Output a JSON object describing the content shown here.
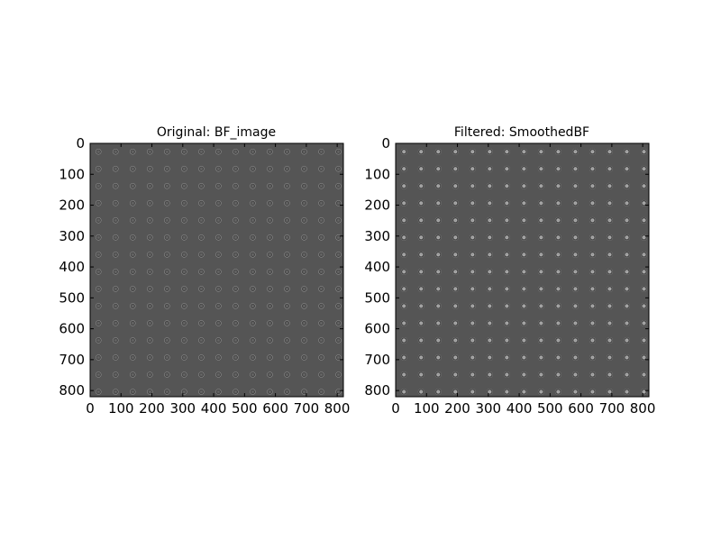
{
  "figure": {
    "panels": [
      {
        "title": "Original: BF_image",
        "xticks": [
          "0",
          "100",
          "200",
          "300",
          "400",
          "500",
          "600",
          "700",
          "800"
        ],
        "yticks": [
          "0",
          "100",
          "200",
          "300",
          "400",
          "500",
          "600",
          "700",
          "800"
        ]
      },
      {
        "title": "Filtered: SmoothedBF",
        "xticks": [
          "0",
          "100",
          "200",
          "300",
          "400",
          "500",
          "600",
          "700",
          "800"
        ],
        "yticks": [
          "0",
          "100",
          "200",
          "300",
          "400",
          "500",
          "600",
          "700",
          "800"
        ]
      }
    ]
  },
  "chart_data": [
    {
      "type": "heatmap",
      "title": "Original: BF_image",
      "xlabel": "",
      "ylabel": "",
      "xlim": [
        0,
        820
      ],
      "ylim": [
        820,
        0
      ],
      "xticks": [
        0,
        100,
        200,
        300,
        400,
        500,
        600,
        700,
        800
      ],
      "yticks": [
        0,
        100,
        200,
        300,
        400,
        500,
        600,
        700,
        800
      ],
      "colormap": "gray",
      "background_color": "#555555",
      "grid": false,
      "spot_grid": {
        "rows": 15,
        "cols": 15,
        "first_x": 27,
        "first_y": 27,
        "spacing_x": 55.5,
        "spacing_y": 55.5,
        "spot_radius": 10
      }
    },
    {
      "type": "heatmap",
      "title": "Filtered: SmoothedBF",
      "xlabel": "",
      "ylabel": "",
      "xlim": [
        0,
        820
      ],
      "ylim": [
        820,
        0
      ],
      "xticks": [
        0,
        100,
        200,
        300,
        400,
        500,
        600,
        700,
        800
      ],
      "yticks": [
        0,
        100,
        200,
        300,
        400,
        500,
        600,
        700,
        800
      ],
      "colormap": "gray",
      "background_color": "#555555",
      "grid": false,
      "spot_grid": {
        "rows": 15,
        "cols": 15,
        "first_x": 27,
        "first_y": 27,
        "spacing_x": 55.5,
        "spacing_y": 55.5,
        "spot_radius": 11
      }
    }
  ]
}
